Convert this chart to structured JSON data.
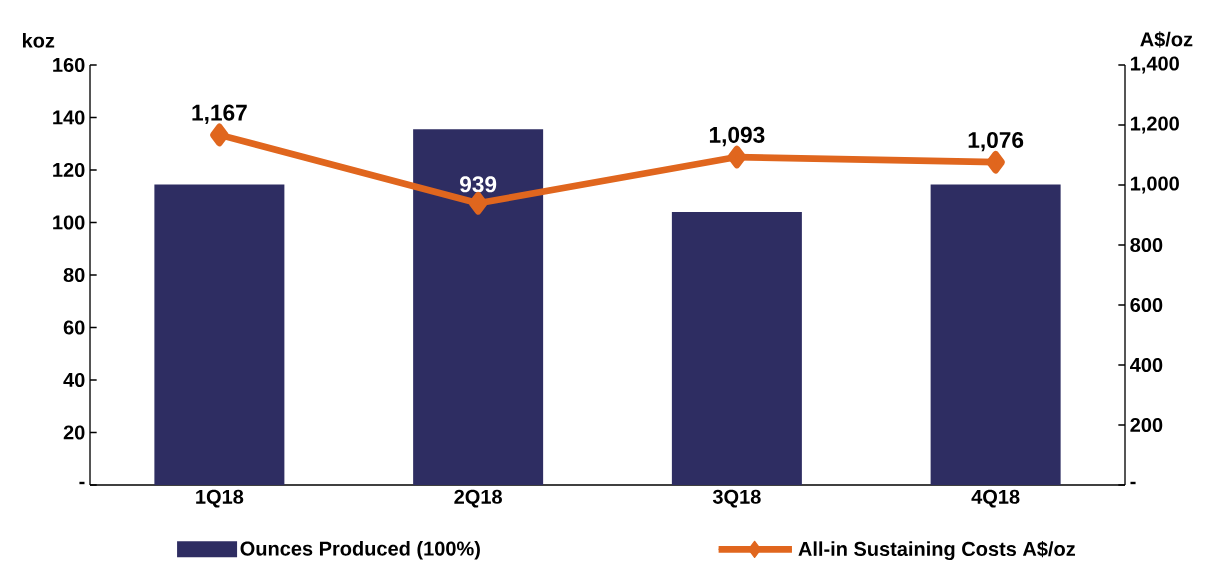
{
  "chart_data": {
    "type": "bar",
    "categories": [
      "1Q18",
      "2Q18",
      "3Q18",
      "4Q18"
    ],
    "ylabel": "koz",
    "y2label": "A$/oz",
    "ylim": [
      0,
      160
    ],
    "yticks": [
      {
        "value": 0,
        "label": "-"
      },
      20,
      40,
      60,
      80,
      100,
      120,
      140,
      160
    ],
    "y2lim": [
      0,
      1400
    ],
    "y2ticks": [
      {
        "value": 0,
        "label": "-"
      },
      {
        "value": 200,
        "label": "200"
      },
      {
        "value": 400,
        "label": "400"
      },
      {
        "value": 600,
        "label": "600"
      },
      {
        "value": 800,
        "label": "800"
      },
      {
        "value": 1000,
        "label": "1,000"
      },
      {
        "value": 1200,
        "label": "1,200"
      },
      {
        "value": 1400,
        "label": "1,400"
      }
    ],
    "series": [
      {
        "name": "Ounces Produced (100%)",
        "color": "#2e2d62",
        "values": [
          114.5,
          135.5,
          104,
          114.5
        ]
      },
      {
        "name": "All-in Sustaining Costs A$/oz",
        "type": "line",
        "axis": "y2",
        "color": "#e0661e",
        "marker": "diamond",
        "values": [
          1167,
          939,
          1093,
          1076
        ],
        "value_labels": [
          "1,167",
          "939",
          "1,093",
          "1,076"
        ]
      }
    ],
    "legend": "bottom",
    "grid": false
  }
}
